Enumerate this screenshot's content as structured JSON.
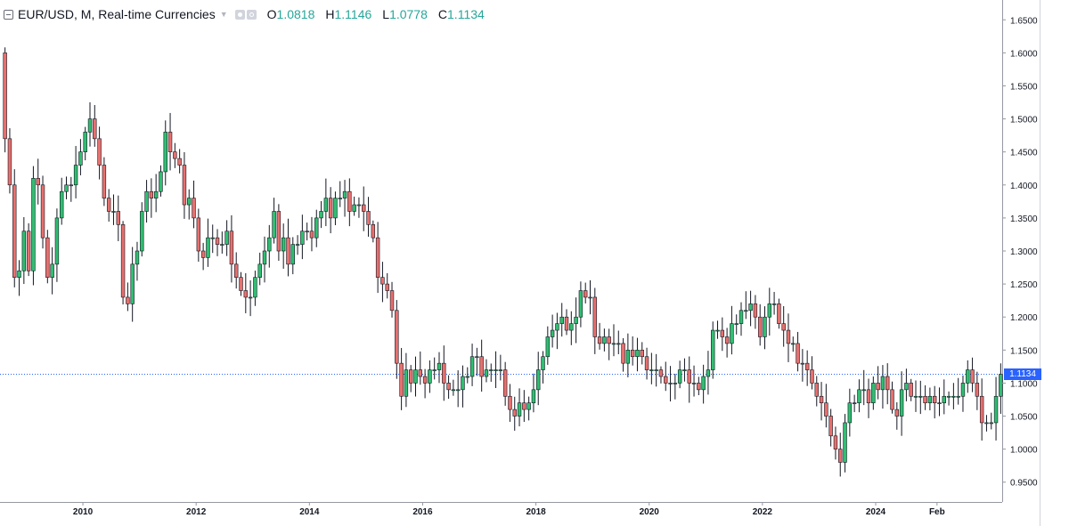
{
  "legend": {
    "title": "EUR/USD, M, Real-time Currencies",
    "ohlc": [
      {
        "key": "O",
        "value": "1.0818"
      },
      {
        "key": "H",
        "value": "1.1146"
      },
      {
        "key": "L",
        "value": "1.0778"
      },
      {
        "key": "C",
        "value": "1.1134"
      }
    ]
  },
  "colors": {
    "up": "#26a69a",
    "down": "#ef5350",
    "up_fill": "#2fbf71",
    "down_fill": "#e8706e",
    "wick": "#131722",
    "grid": "#e1e3ea",
    "axis_text": "#131722",
    "price_line": "#2962ff"
  },
  "current_price": {
    "label": "1.1134",
    "value": 1.1134
  },
  "chart_data": {
    "type": "candlestick",
    "title": "EUR/USD, M, Real-time Currencies",
    "timeframe": "M",
    "ylim": [
      0.92,
      1.68
    ],
    "y_ticks": [
      "1.6500",
      "1.6000",
      "1.5500",
      "1.5000",
      "1.4500",
      "1.4000",
      "1.3500",
      "1.3000",
      "1.2500",
      "1.2000",
      "1.1500",
      "1.1000",
      "1.0500",
      "1.0000",
      "0.9500"
    ],
    "x_ticks": [
      {
        "label": "2010",
        "index": 17
      },
      {
        "label": "2012",
        "index": 41
      },
      {
        "label": "2014",
        "index": 65
      },
      {
        "label": "2016",
        "index": 89
      },
      {
        "label": "2018",
        "index": 113
      },
      {
        "label": "2020",
        "index": 137
      },
      {
        "label": "2022",
        "index": 161
      },
      {
        "label": "2024",
        "index": 185
      },
      {
        "label": "Feb",
        "index": 198
      }
    ],
    "grid": "off",
    "start": "2008-08",
    "end": "2025-03",
    "closes": [
      1.47,
      1.4,
      1.26,
      1.27,
      1.33,
      1.27,
      1.41,
      1.4,
      1.32,
      1.26,
      1.28,
      1.35,
      1.39,
      1.4,
      1.4,
      1.43,
      1.45,
      1.48,
      1.5,
      1.47,
      1.43,
      1.38,
      1.36,
      1.36,
      1.34,
      1.23,
      1.22,
      1.28,
      1.3,
      1.36,
      1.39,
      1.38,
      1.39,
      1.42,
      1.48,
      1.45,
      1.44,
      1.43,
      1.37,
      1.38,
      1.35,
      1.3,
      1.29,
      1.32,
      1.32,
      1.31,
      1.31,
      1.33,
      1.28,
      1.26,
      1.24,
      1.23,
      1.23,
      1.26,
      1.28,
      1.3,
      1.32,
      1.36,
      1.3,
      1.32,
      1.28,
      1.31,
      1.31,
      1.33,
      1.33,
      1.32,
      1.35,
      1.36,
      1.38,
      1.35,
      1.38,
      1.38,
      1.39,
      1.36,
      1.37,
      1.37,
      1.36,
      1.34,
      1.32,
      1.26,
      1.25,
      1.24,
      1.21,
      1.13,
      1.08,
      1.12,
      1.1,
      1.12,
      1.11,
      1.1,
      1.12,
      1.12,
      1.13,
      1.1,
      1.09,
      1.09,
      1.09,
      1.11,
      1.11,
      1.14,
      1.14,
      1.11,
      1.12,
      1.12,
      1.12,
      1.12,
      1.08,
      1.06,
      1.05,
      1.07,
      1.06,
      1.07,
      1.09,
      1.12,
      1.14,
      1.17,
      1.18,
      1.19,
      1.2,
      1.18,
      1.19,
      1.2,
      1.24,
      1.23,
      1.23,
      1.17,
      1.16,
      1.17,
      1.16,
      1.16,
      1.16,
      1.13,
      1.15,
      1.14,
      1.15,
      1.14,
      1.12,
      1.12,
      1.12,
      1.11,
      1.1,
      1.1,
      1.1,
      1.12,
      1.12,
      1.1,
      1.1,
      1.09,
      1.11,
      1.12,
      1.18,
      1.18,
      1.17,
      1.16,
      1.19,
      1.19,
      1.21,
      1.21,
      1.22,
      1.2,
      1.17,
      1.2,
      1.22,
      1.22,
      1.19,
      1.18,
      1.16,
      1.16,
      1.13,
      1.13,
      1.12,
      1.1,
      1.08,
      1.07,
      1.05,
      1.02,
      1.0,
      0.98,
      1.04,
      1.07,
      1.07,
      1.09,
      1.09,
      1.07,
      1.1,
      1.09,
      1.11,
      1.09,
      1.06,
      1.05,
      1.09,
      1.1,
      1.08,
      1.08,
      1.08,
      1.07,
      1.08,
      1.07,
      1.07,
      1.08,
      1.08,
      1.08,
      1.08,
      1.1,
      1.12,
      1.1,
      1.08,
      1.04,
      1.04,
      1.04,
      1.08,
      1.1134
    ]
  }
}
